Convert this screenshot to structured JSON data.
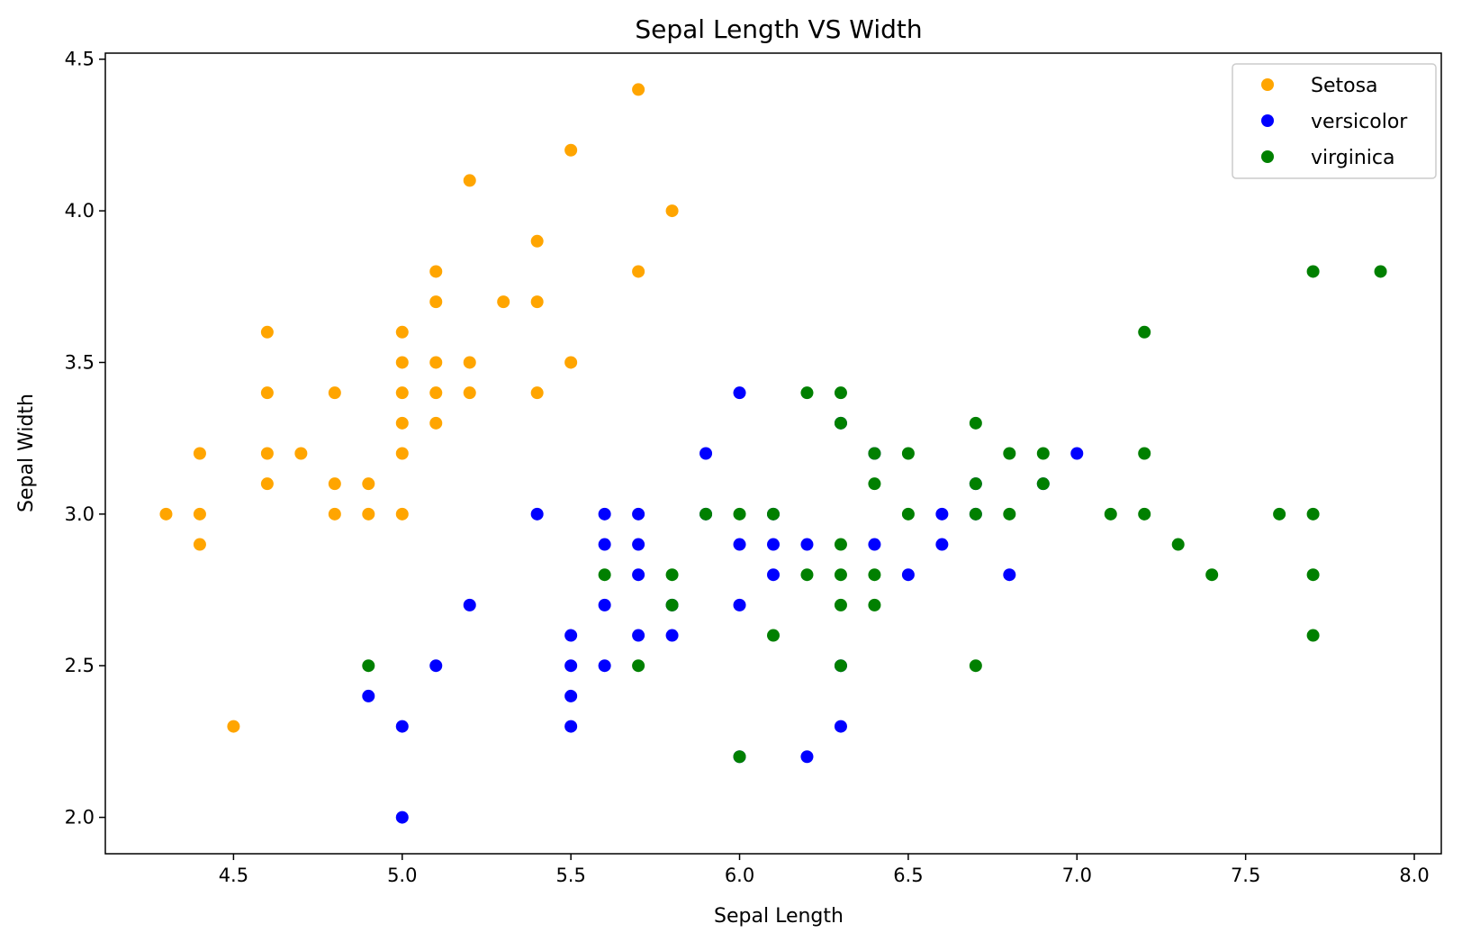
{
  "chart_data": {
    "type": "scatter",
    "title": "Sepal Length VS Width",
    "xlabel": "Sepal Length",
    "ylabel": "Sepal Width",
    "xlim": [
      4.12,
      8.08
    ],
    "ylim": [
      1.88,
      4.52
    ],
    "xticks": [
      "4.5",
      "5.0",
      "5.5",
      "6.0",
      "6.5",
      "7.0",
      "7.5",
      "8.0"
    ],
    "yticks": [
      "2.0",
      "2.5",
      "3.0",
      "3.5",
      "4.0",
      "4.5"
    ],
    "grid": false,
    "legend_position": "top-right",
    "series": [
      {
        "name": "Setosa",
        "color": "#FFA500",
        "points": [
          [
            4.3,
            3.0
          ],
          [
            4.4,
            3.2
          ],
          [
            4.4,
            3.0
          ],
          [
            4.4,
            2.9
          ],
          [
            4.5,
            2.3
          ],
          [
            4.6,
            3.6
          ],
          [
            4.6,
            3.4
          ],
          [
            4.6,
            3.2
          ],
          [
            4.6,
            3.1
          ],
          [
            4.7,
            3.2
          ],
          [
            4.8,
            3.4
          ],
          [
            4.8,
            3.1
          ],
          [
            4.8,
            3.0
          ],
          [
            4.9,
            3.1
          ],
          [
            4.9,
            3.0
          ],
          [
            5.0,
            3.6
          ],
          [
            5.0,
            3.5
          ],
          [
            5.0,
            3.4
          ],
          [
            5.0,
            3.3
          ],
          [
            5.0,
            3.2
          ],
          [
            5.0,
            3.0
          ],
          [
            5.1,
            3.8
          ],
          [
            5.1,
            3.7
          ],
          [
            5.1,
            3.5
          ],
          [
            5.1,
            3.4
          ],
          [
            5.1,
            3.3
          ],
          [
            5.2,
            4.1
          ],
          [
            5.2,
            3.5
          ],
          [
            5.2,
            3.4
          ],
          [
            5.3,
            3.7
          ],
          [
            5.4,
            3.9
          ],
          [
            5.4,
            3.7
          ],
          [
            5.4,
            3.4
          ],
          [
            5.5,
            4.2
          ],
          [
            5.5,
            3.5
          ],
          [
            5.7,
            4.4
          ],
          [
            5.7,
            3.8
          ],
          [
            5.8,
            4.0
          ]
        ]
      },
      {
        "name": "versicolor",
        "color": "#0000FF",
        "points": [
          [
            4.9,
            2.4
          ],
          [
            5.0,
            2.3
          ],
          [
            5.0,
            2.0
          ],
          [
            5.1,
            2.5
          ],
          [
            5.2,
            2.7
          ],
          [
            5.4,
            3.0
          ],
          [
            5.5,
            2.6
          ],
          [
            5.5,
            2.5
          ],
          [
            5.5,
            2.4
          ],
          [
            5.5,
            2.3
          ],
          [
            5.6,
            3.0
          ],
          [
            5.6,
            2.9
          ],
          [
            5.6,
            2.7
          ],
          [
            5.6,
            2.5
          ],
          [
            5.7,
            3.0
          ],
          [
            5.7,
            2.9
          ],
          [
            5.7,
            2.8
          ],
          [
            5.7,
            2.6
          ],
          [
            5.8,
            2.7
          ],
          [
            5.8,
            2.6
          ],
          [
            5.9,
            3.2
          ],
          [
            5.9,
            3.0
          ],
          [
            6.0,
            3.4
          ],
          [
            6.0,
            2.9
          ],
          [
            6.0,
            2.7
          ],
          [
            6.0,
            2.2
          ],
          [
            6.1,
            3.0
          ],
          [
            6.1,
            2.9
          ],
          [
            6.1,
            2.8
          ],
          [
            6.2,
            2.9
          ],
          [
            6.2,
            2.2
          ],
          [
            6.3,
            3.3
          ],
          [
            6.3,
            2.5
          ],
          [
            6.3,
            2.3
          ],
          [
            6.4,
            3.2
          ],
          [
            6.4,
            2.9
          ],
          [
            6.5,
            2.8
          ],
          [
            6.6,
            3.0
          ],
          [
            6.6,
            2.9
          ],
          [
            6.7,
            3.1
          ],
          [
            6.7,
            3.0
          ],
          [
            6.8,
            2.8
          ],
          [
            6.9,
            3.1
          ],
          [
            7.0,
            3.2
          ]
        ]
      },
      {
        "name": "virginica",
        "color": "#008000",
        "points": [
          [
            4.9,
            2.5
          ],
          [
            5.6,
            2.8
          ],
          [
            5.7,
            2.5
          ],
          [
            5.8,
            2.8
          ],
          [
            5.8,
            2.7
          ],
          [
            5.9,
            3.0
          ],
          [
            6.0,
            3.0
          ],
          [
            6.0,
            2.2
          ],
          [
            6.1,
            3.0
          ],
          [
            6.1,
            2.6
          ],
          [
            6.2,
            3.4
          ],
          [
            6.2,
            2.8
          ],
          [
            6.3,
            3.4
          ],
          [
            6.3,
            3.3
          ],
          [
            6.3,
            2.9
          ],
          [
            6.3,
            2.8
          ],
          [
            6.3,
            2.7
          ],
          [
            6.3,
            2.5
          ],
          [
            6.4,
            3.2
          ],
          [
            6.4,
            3.1
          ],
          [
            6.4,
            2.8
          ],
          [
            6.4,
            2.7
          ],
          [
            6.5,
            3.2
          ],
          [
            6.5,
            3.0
          ],
          [
            6.7,
            3.3
          ],
          [
            6.7,
            3.1
          ],
          [
            6.7,
            3.0
          ],
          [
            6.7,
            2.5
          ],
          [
            6.8,
            3.2
          ],
          [
            6.8,
            3.0
          ],
          [
            6.9,
            3.2
          ],
          [
            6.9,
            3.1
          ],
          [
            7.1,
            3.0
          ],
          [
            7.2,
            3.6
          ],
          [
            7.2,
            3.2
          ],
          [
            7.2,
            3.0
          ],
          [
            7.3,
            2.9
          ],
          [
            7.4,
            2.8
          ],
          [
            7.6,
            3.0
          ],
          [
            7.7,
            3.8
          ],
          [
            7.7,
            3.0
          ],
          [
            7.7,
            2.8
          ],
          [
            7.7,
            2.6
          ],
          [
            7.9,
            3.8
          ]
        ]
      }
    ]
  }
}
